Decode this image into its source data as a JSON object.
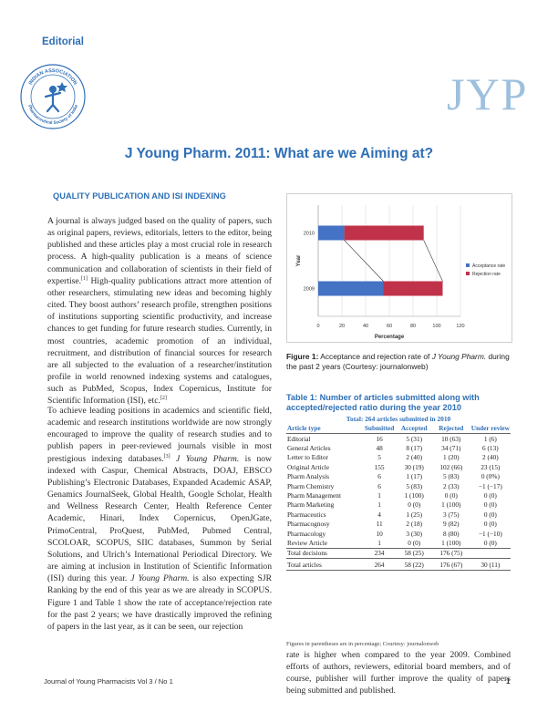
{
  "header": {
    "section_label": "Editorial",
    "journal_mark": "JYP",
    "logo_text_top": "INDIAN ASSOCIATION",
    "logo_text_bottom": "Pharmaceutical Society of India"
  },
  "title": "J Young Pharm. 2011: What are we Aiming at?",
  "section_heading": "QUALITY PUBLICATION AND ISI INDEXING",
  "paragraphs": {
    "p1_a": "A journal is always judged based on the quality of papers, such as original papers, reviews, editorials, letters to the editor, being published and these articles play a most crucial role in research process. A high-quality publication is a means of science communication and collaboration of scientists in their field of expertise.",
    "p1_ref1": "[1]",
    "p1_b": " High-quality publications attract more attention of other researchers, stimulating new ideas and becoming highly cited. They boost authors’ research profile, strengthen positions of institutions supporting scientific productivity, and increase chances to get funding for future research studies. Currently, in most countries, academic promotion of an individual, recruitment, and distribution of financial sources for research are all subjected to the evaluation of a researcher/institution profile in world renowned indexing systems and catalogues, such as PubMed, Scopus, Index Copernicus, Institute for Scientific Information (ISI), etc.",
    "p1_ref2": "[2]",
    "p2_a": "To achieve leading positions in academics and scientific field, academic and research institutions worldwide are now strongly encouraged to improve the quality of research studies and to publish papers in peer-reviewed journals visible in most prestigious indexing databases.",
    "p2_ref": "[3]",
    "p2_jyp1": " J Young Pharm.",
    "p2_b": " is now indexed with Caspur, Chemical Abstracts, DOAJ, EBSCO Publishing’s Electronic Databases, Expanded Academic ASAP, Genamics JournalSeek, Global Health, Google Scholar, Health and Wellness Research Center, Health Reference Center Academic, Hinari, Index Copernicus, OpenJGate, PrimoCentral, ProQuest, PubMed, Pubmed Central, SCOLOAR, SCOPUS, SIIC databases, Summon by Serial Solutions, and Ulrich’s International Periodical Directory. We are aiming at inclusion in Institution of Scientific Information (ISI) during this year. ",
    "p2_jyp2": "J Young Pharm.",
    "p2_c": " is also expecting SJR Ranking by the end of this year as we are already in SCOPUS. Figure 1 and Table 1 show the rate of acceptance/rejection rate for the past 2 years; we have drastically improved the refining of papers in the last year, as it can be seen, our rejection",
    "p3": "rate is higher when compared to the year 2009. Combined efforts of authors, reviewers, editorial board members, and of course, publisher will further improve the quality of papers being submitted and published."
  },
  "figure": {
    "caption_label": "Figure 1:",
    "caption_a": " Acceptance and rejection rate of ",
    "caption_journal": "J Young Pharm.",
    "caption_b": " during the past 2 years (Courtesy: journalonweb)"
  },
  "chart_data": {
    "type": "bar",
    "orientation": "horizontal",
    "stacked": true,
    "categories": [
      "2009",
      "2010"
    ],
    "series": [
      {
        "name": "Acceptance rate",
        "values": [
          55,
          22
        ],
        "color": "#4472c4"
      },
      {
        "name": "Rejection rate",
        "values": [
          50,
          67
        ],
        "color": "#c0324a"
      }
    ],
    "xlabel": "Percentage",
    "ylabel": "Year",
    "xticks": [
      "0",
      "20",
      "40",
      "60",
      "80",
      "100",
      "120"
    ],
    "xlim": [
      0,
      120
    ],
    "legend_position": "right",
    "grid": true
  },
  "table": {
    "title": "Table 1: Number of articles submitted along with accepted/rejected ratio during the year 2010",
    "subtitle": "Total: 264 articles submitted in 2010",
    "headers": [
      "Article type",
      "Submitted",
      "Accepted",
      "Rejected",
      "Under review"
    ],
    "rows": [
      [
        "Editorial",
        "16",
        "5 (31)",
        "10 (63)",
        "1 (6)"
      ],
      [
        "General Articles",
        "48",
        "8 (17)",
        "34 (71)",
        "6 (13)"
      ],
      [
        "Letter to Editor",
        "5",
        "2 (40)",
        "1 (20)",
        "2 (40)"
      ],
      [
        "Original Article",
        "155",
        "30 (19)",
        "102 (66)",
        "23 (15)"
      ],
      [
        "Pharm Analysis",
        "6",
        "1 (17)",
        "5 (83)",
        "0 (0%)"
      ],
      [
        "Pharm Chemistry",
        "6",
        "5 (83)",
        "2 (33)",
        "−1 (−17)"
      ],
      [
        "Pharm Management",
        "1",
        "1 (100)",
        "0 (0)",
        "0 (0)"
      ],
      [
        "Pharm Marketing",
        "1",
        "0 (0)",
        "1 (100)",
        "0 (0)"
      ],
      [
        "Pharmaceutics",
        "4",
        "1 (25)",
        "3 (75)",
        "0 (0)"
      ],
      [
        "Pharmacognosy",
        "11",
        "2 (18)",
        "9 (82)",
        "0 (0)"
      ],
      [
        "Pharmacology",
        "10",
        "3 (30)",
        "8 (80)",
        "−1 (−10)"
      ],
      [
        "Review Article",
        "1",
        "0 (0)",
        "1 (100)",
        "0 (0)"
      ],
      [
        "Total decisions",
        "234",
        "58 (25)",
        "176 (75)",
        ""
      ],
      [
        "Total articles",
        "264",
        "58 (22)",
        "176 (67)",
        "30 (11)"
      ]
    ],
    "footnote": "Figures in parentheses are in percentage; Courtesy: journalonweb"
  },
  "footer": {
    "journal": "Journal of Young Pharmacists Vol 3 / No 1",
    "page": "1"
  },
  "colors": {
    "accent_blue": "#2f6fb5",
    "journal_mark": "#9ec0de"
  }
}
